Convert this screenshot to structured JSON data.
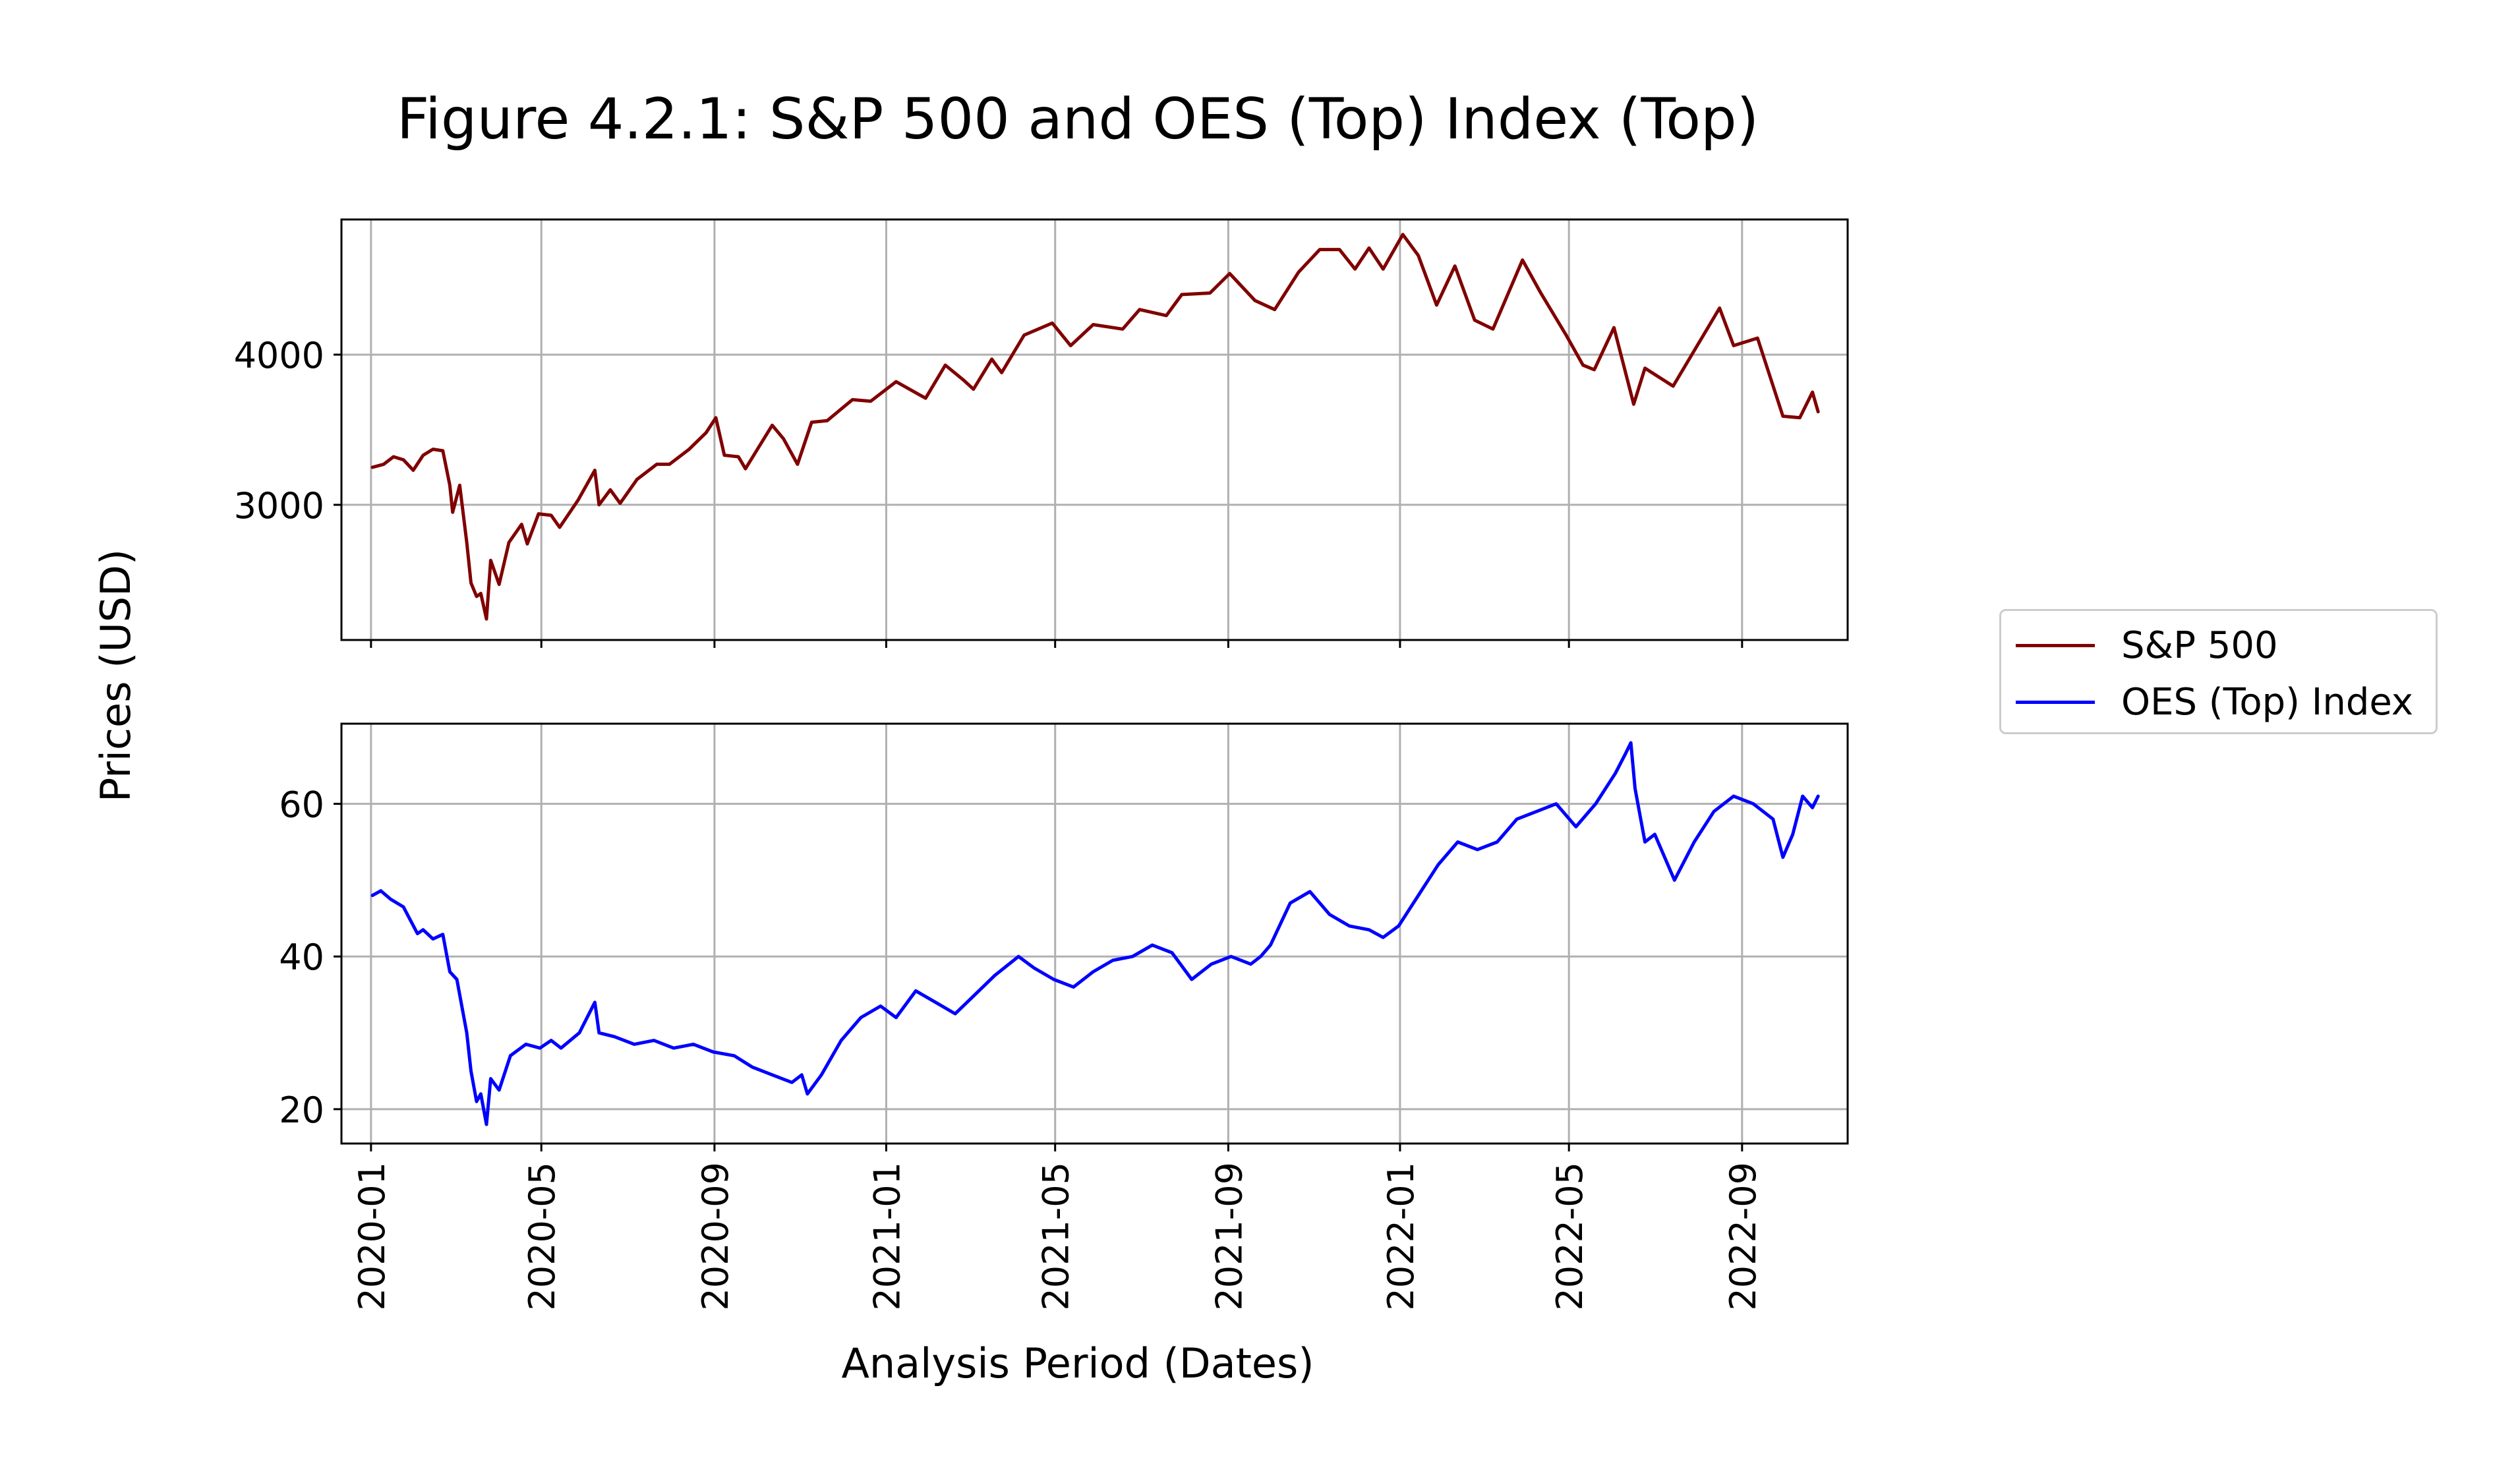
{
  "figure": {
    "title": "Figure 4.2.1: S&P 500 and OES (Top) Index (Top)",
    "xlabel": "Analysis Period (Dates)",
    "ylabel": "Prices (USD)"
  },
  "legend": {
    "placement": "right",
    "items": [
      {
        "label": "S&P 500",
        "color": "#800000"
      },
      {
        "label": "OES (Top) Index",
        "color": "#0000ff"
      }
    ]
  },
  "chart_data": [
    {
      "type": "line",
      "panel": "top",
      "grid": true,
      "xlim": [
        "2019-12-11",
        "2022-11-15"
      ],
      "ylim": [
        2100,
        4900
      ],
      "yticks": [
        3000,
        4000
      ],
      "series": [
        {
          "name": "S&P 500",
          "color": "#800000",
          "points": [
            [
              "2020-01-02",
              3250
            ],
            [
              "2020-01-10",
              3270
            ],
            [
              "2020-01-17",
              3320
            ],
            [
              "2020-01-24",
              3300
            ],
            [
              "2020-01-31",
              3230
            ],
            [
              "2020-02-07",
              3330
            ],
            [
              "2020-02-14",
              3370
            ],
            [
              "2020-02-21",
              3360
            ],
            [
              "2020-02-26",
              3130
            ],
            [
              "2020-02-28",
              2950
            ],
            [
              "2020-03-04",
              3130
            ],
            [
              "2020-03-09",
              2750
            ],
            [
              "2020-03-12",
              2480
            ],
            [
              "2020-03-16",
              2390
            ],
            [
              "2020-03-19",
              2410
            ],
            [
              "2020-03-23",
              2240
            ],
            [
              "2020-03-26",
              2630
            ],
            [
              "2020-04-01",
              2470
            ],
            [
              "2020-04-08",
              2750
            ],
            [
              "2020-04-17",
              2870
            ],
            [
              "2020-04-21",
              2740
            ],
            [
              "2020-04-29",
              2940
            ],
            [
              "2020-05-08",
              2930
            ],
            [
              "2020-05-14",
              2850
            ],
            [
              "2020-05-27",
              3030
            ],
            [
              "2020-06-08",
              3230
            ],
            [
              "2020-06-11",
              3000
            ],
            [
              "2020-06-19",
              3100
            ],
            [
              "2020-06-26",
              3010
            ],
            [
              "2020-07-08",
              3170
            ],
            [
              "2020-07-22",
              3270
            ],
            [
              "2020-07-31",
              3270
            ],
            [
              "2020-08-14",
              3370
            ],
            [
              "2020-08-26",
              3480
            ],
            [
              "2020-09-02",
              3580
            ],
            [
              "2020-09-08",
              3330
            ],
            [
              "2020-09-18",
              3320
            ],
            [
              "2020-09-23",
              3240
            ],
            [
              "2020-10-12",
              3530
            ],
            [
              "2020-10-20",
              3440
            ],
            [
              "2020-10-30",
              3270
            ],
            [
              "2020-11-09",
              3550
            ],
            [
              "2020-11-20",
              3560
            ],
            [
              "2020-12-08",
              3700
            ],
            [
              "2020-12-21",
              3690
            ],
            [
              "2021-01-08",
              3820
            ],
            [
              "2021-01-29",
              3710
            ],
            [
              "2021-02-12",
              3930
            ],
            [
              "2021-02-25",
              3830
            ],
            [
              "2021-03-04",
              3770
            ],
            [
              "2021-03-17",
              3970
            ],
            [
              "2021-03-24",
              3880
            ],
            [
              "2021-04-09",
              4130
            ],
            [
              "2021-04-29",
              4210
            ],
            [
              "2021-05-12",
              4060
            ],
            [
              "2021-05-28",
              4200
            ],
            [
              "2021-06-18",
              4170
            ],
            [
              "2021-06-30",
              4300
            ],
            [
              "2021-07-19",
              4260
            ],
            [
              "2021-07-30",
              4400
            ],
            [
              "2021-08-19",
              4410
            ],
            [
              "2021-09-02",
              4540
            ],
            [
              "2021-09-20",
              4360
            ],
            [
              "2021-10-04",
              4300
            ],
            [
              "2021-10-21",
              4550
            ],
            [
              "2021-11-05",
              4700
            ],
            [
              "2021-11-19",
              4700
            ],
            [
              "2021-11-30",
              4570
            ],
            [
              "2021-12-10",
              4710
            ],
            [
              "2021-12-20",
              4570
            ],
            [
              "2022-01-03",
              4800
            ],
            [
              "2022-01-14",
              4660
            ],
            [
              "2022-01-27",
              4330
            ],
            [
              "2022-02-09",
              4590
            ],
            [
              "2022-02-23",
              4230
            ],
            [
              "2022-03-08",
              4170
            ],
            [
              "2022-03-29",
              4630
            ],
            [
              "2022-04-11",
              4410
            ],
            [
              "2022-04-29",
              4130
            ],
            [
              "2022-05-11",
              3930
            ],
            [
              "2022-05-19",
              3900
            ],
            [
              "2022-06-02",
              4180
            ],
            [
              "2022-06-16",
              3670
            ],
            [
              "2022-06-24",
              3910
            ],
            [
              "2022-07-14",
              3790
            ],
            [
              "2022-08-16",
              4310
            ],
            [
              "2022-08-26",
              4060
            ],
            [
              "2022-09-12",
              4110
            ],
            [
              "2022-09-30",
              3590
            ],
            [
              "2022-10-12",
              3580
            ],
            [
              "2022-10-21",
              3750
            ],
            [
              "2022-10-25",
              3620
            ]
          ]
        }
      ]
    },
    {
      "type": "line",
      "panel": "bottom",
      "grid": true,
      "xlim": [
        "2019-12-11",
        "2022-11-15"
      ],
      "ylim": [
        15.5,
        70.5
      ],
      "yticks": [
        20,
        40,
        60
      ],
      "series": [
        {
          "name": "OES (Top) Index",
          "color": "#0000ff",
          "points": [
            [
              "2020-01-02",
              48.0
            ],
            [
              "2020-01-08",
              48.6
            ],
            [
              "2020-01-15",
              47.5
            ],
            [
              "2020-01-24",
              46.5
            ],
            [
              "2020-02-03",
              43.0
            ],
            [
              "2020-02-07",
              43.5
            ],
            [
              "2020-02-14",
              42.3
            ],
            [
              "2020-02-21",
              42.9
            ],
            [
              "2020-02-26",
              38.0
            ],
            [
              "2020-03-02",
              37.0
            ],
            [
              "2020-03-09",
              30.0
            ],
            [
              "2020-03-12",
              25.0
            ],
            [
              "2020-03-16",
              21.0
            ],
            [
              "2020-03-19",
              22.0
            ],
            [
              "2020-03-23",
              18.0
            ],
            [
              "2020-03-26",
              24.0
            ],
            [
              "2020-04-01",
              22.5
            ],
            [
              "2020-04-09",
              27.0
            ],
            [
              "2020-04-20",
              28.5
            ],
            [
              "2020-04-30",
              28.0
            ],
            [
              "2020-05-08",
              29.0
            ],
            [
              "2020-05-15",
              28.0
            ],
            [
              "2020-05-28",
              30.0
            ],
            [
              "2020-06-08",
              34.0
            ],
            [
              "2020-06-11",
              30.0
            ],
            [
              "2020-06-22",
              29.5
            ],
            [
              "2020-07-06",
              28.5
            ],
            [
              "2020-07-20",
              29.0
            ],
            [
              "2020-08-03",
              28.0
            ],
            [
              "2020-08-17",
              28.5
            ],
            [
              "2020-08-31",
              27.5
            ],
            [
              "2020-09-15",
              27.0
            ],
            [
              "2020-09-28",
              25.5
            ],
            [
              "2020-10-12",
              24.5
            ],
            [
              "2020-10-26",
              23.5
            ],
            [
              "2020-11-02",
              24.5
            ],
            [
              "2020-11-06",
              22.0
            ],
            [
              "2020-11-16",
              24.5
            ],
            [
              "2020-11-30",
              29.0
            ],
            [
              "2020-12-14",
              32.0
            ],
            [
              "2020-12-28",
              33.5
            ],
            [
              "2021-01-08",
              32.0
            ],
            [
              "2021-01-22",
              35.5
            ],
            [
              "2021-02-05",
              34.0
            ],
            [
              "2021-02-19",
              32.5
            ],
            [
              "2021-03-05",
              35.0
            ],
            [
              "2021-03-19",
              37.5
            ],
            [
              "2021-04-05",
              40.0
            ],
            [
              "2021-04-16",
              38.5
            ],
            [
              "2021-04-30",
              37.0
            ],
            [
              "2021-05-14",
              36.0
            ],
            [
              "2021-05-28",
              38.0
            ],
            [
              "2021-06-11",
              39.5
            ],
            [
              "2021-06-25",
              40.0
            ],
            [
              "2021-07-09",
              41.5
            ],
            [
              "2021-07-23",
              40.5
            ],
            [
              "2021-08-06",
              37.0
            ],
            [
              "2021-08-20",
              39.0
            ],
            [
              "2021-09-03",
              40.0
            ],
            [
              "2021-09-17",
              39.0
            ],
            [
              "2021-09-24",
              40.0
            ],
            [
              "2021-10-01",
              41.5
            ],
            [
              "2021-10-15",
              47.0
            ],
            [
              "2021-10-29",
              48.5
            ],
            [
              "2021-11-12",
              45.5
            ],
            [
              "2021-11-26",
              44.0
            ],
            [
              "2021-12-10",
              43.5
            ],
            [
              "2021-12-20",
              42.5
            ],
            [
              "2021-12-31",
              44.0
            ],
            [
              "2022-01-14",
              48.0
            ],
            [
              "2022-01-28",
              52.0
            ],
            [
              "2022-02-11",
              55.0
            ],
            [
              "2022-02-25",
              54.0
            ],
            [
              "2022-03-11",
              55.0
            ],
            [
              "2022-03-25",
              58.0
            ],
            [
              "2022-04-08",
              59.0
            ],
            [
              "2022-04-22",
              60.0
            ],
            [
              "2022-05-06",
              57.0
            ],
            [
              "2022-05-20",
              60.0
            ],
            [
              "2022-06-03",
              64.0
            ],
            [
              "2022-06-10",
              66.5
            ],
            [
              "2022-06-14",
              68.0
            ],
            [
              "2022-06-17",
              62.0
            ],
            [
              "2022-06-24",
              55.0
            ],
            [
              "2022-07-01",
              56.0
            ],
            [
              "2022-07-08",
              53.0
            ],
            [
              "2022-07-15",
              50.0
            ],
            [
              "2022-07-29",
              55.0
            ],
            [
              "2022-08-12",
              59.0
            ],
            [
              "2022-08-26",
              61.0
            ],
            [
              "2022-09-09",
              60.0
            ],
            [
              "2022-09-23",
              58.0
            ],
            [
              "2022-09-30",
              53.0
            ],
            [
              "2022-10-07",
              56.0
            ],
            [
              "2022-10-14",
              61.0
            ],
            [
              "2022-10-21",
              59.5
            ],
            [
              "2022-10-25",
              61.0
            ]
          ]
        }
      ]
    }
  ],
  "xaxis": {
    "ticks": [
      "2020-01-01",
      "2020-05-01",
      "2020-09-01",
      "2021-01-01",
      "2021-05-01",
      "2021-09-01",
      "2022-01-01",
      "2022-05-01",
      "2022-09-01"
    ],
    "tick_labels": [
      "2020-01",
      "2020-05",
      "2020-09",
      "2021-01",
      "2021-05",
      "2021-09",
      "2022-01",
      "2022-05",
      "2022-09"
    ]
  }
}
